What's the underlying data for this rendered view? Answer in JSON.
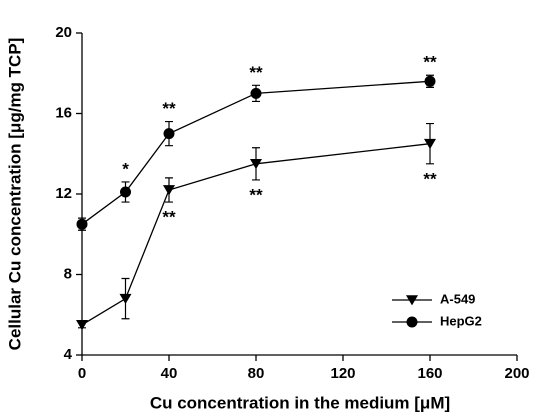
{
  "chart_data": {
    "type": "line",
    "xlabel": "Cu concentration in the medium [μM]",
    "ylabel": "Cellular Cu concentration [μg/mg TCP]",
    "x": [
      0,
      20,
      40,
      80,
      160
    ],
    "series": [
      {
        "name": "A-549",
        "color": "#000000",
        "marker": "triangle-down",
        "values": [
          5.5,
          6.8,
          12.2,
          13.5,
          14.5
        ],
        "errors": [
          0.15,
          1.0,
          0.6,
          0.8,
          1.0
        ],
        "annotations": [
          null,
          null,
          "**",
          "**",
          "**"
        ],
        "annotation_side": "below"
      },
      {
        "name": "HepG2",
        "color": "#000000",
        "marker": "circle",
        "values": [
          10.5,
          12.1,
          15.0,
          17.0,
          17.6
        ],
        "errors": [
          0.3,
          0.5,
          0.6,
          0.4,
          0.3
        ],
        "annotations": [
          null,
          "*",
          "**",
          "**",
          "**"
        ],
        "annotation_side": "above"
      }
    ],
    "xlim": [
      0,
      200
    ],
    "xticks": [
      0,
      40,
      80,
      120,
      160,
      200
    ],
    "ylim": [
      4,
      20
    ],
    "yticks": [
      4,
      8,
      12,
      16,
      20
    ],
    "grid": false,
    "legend": "lower right"
  }
}
